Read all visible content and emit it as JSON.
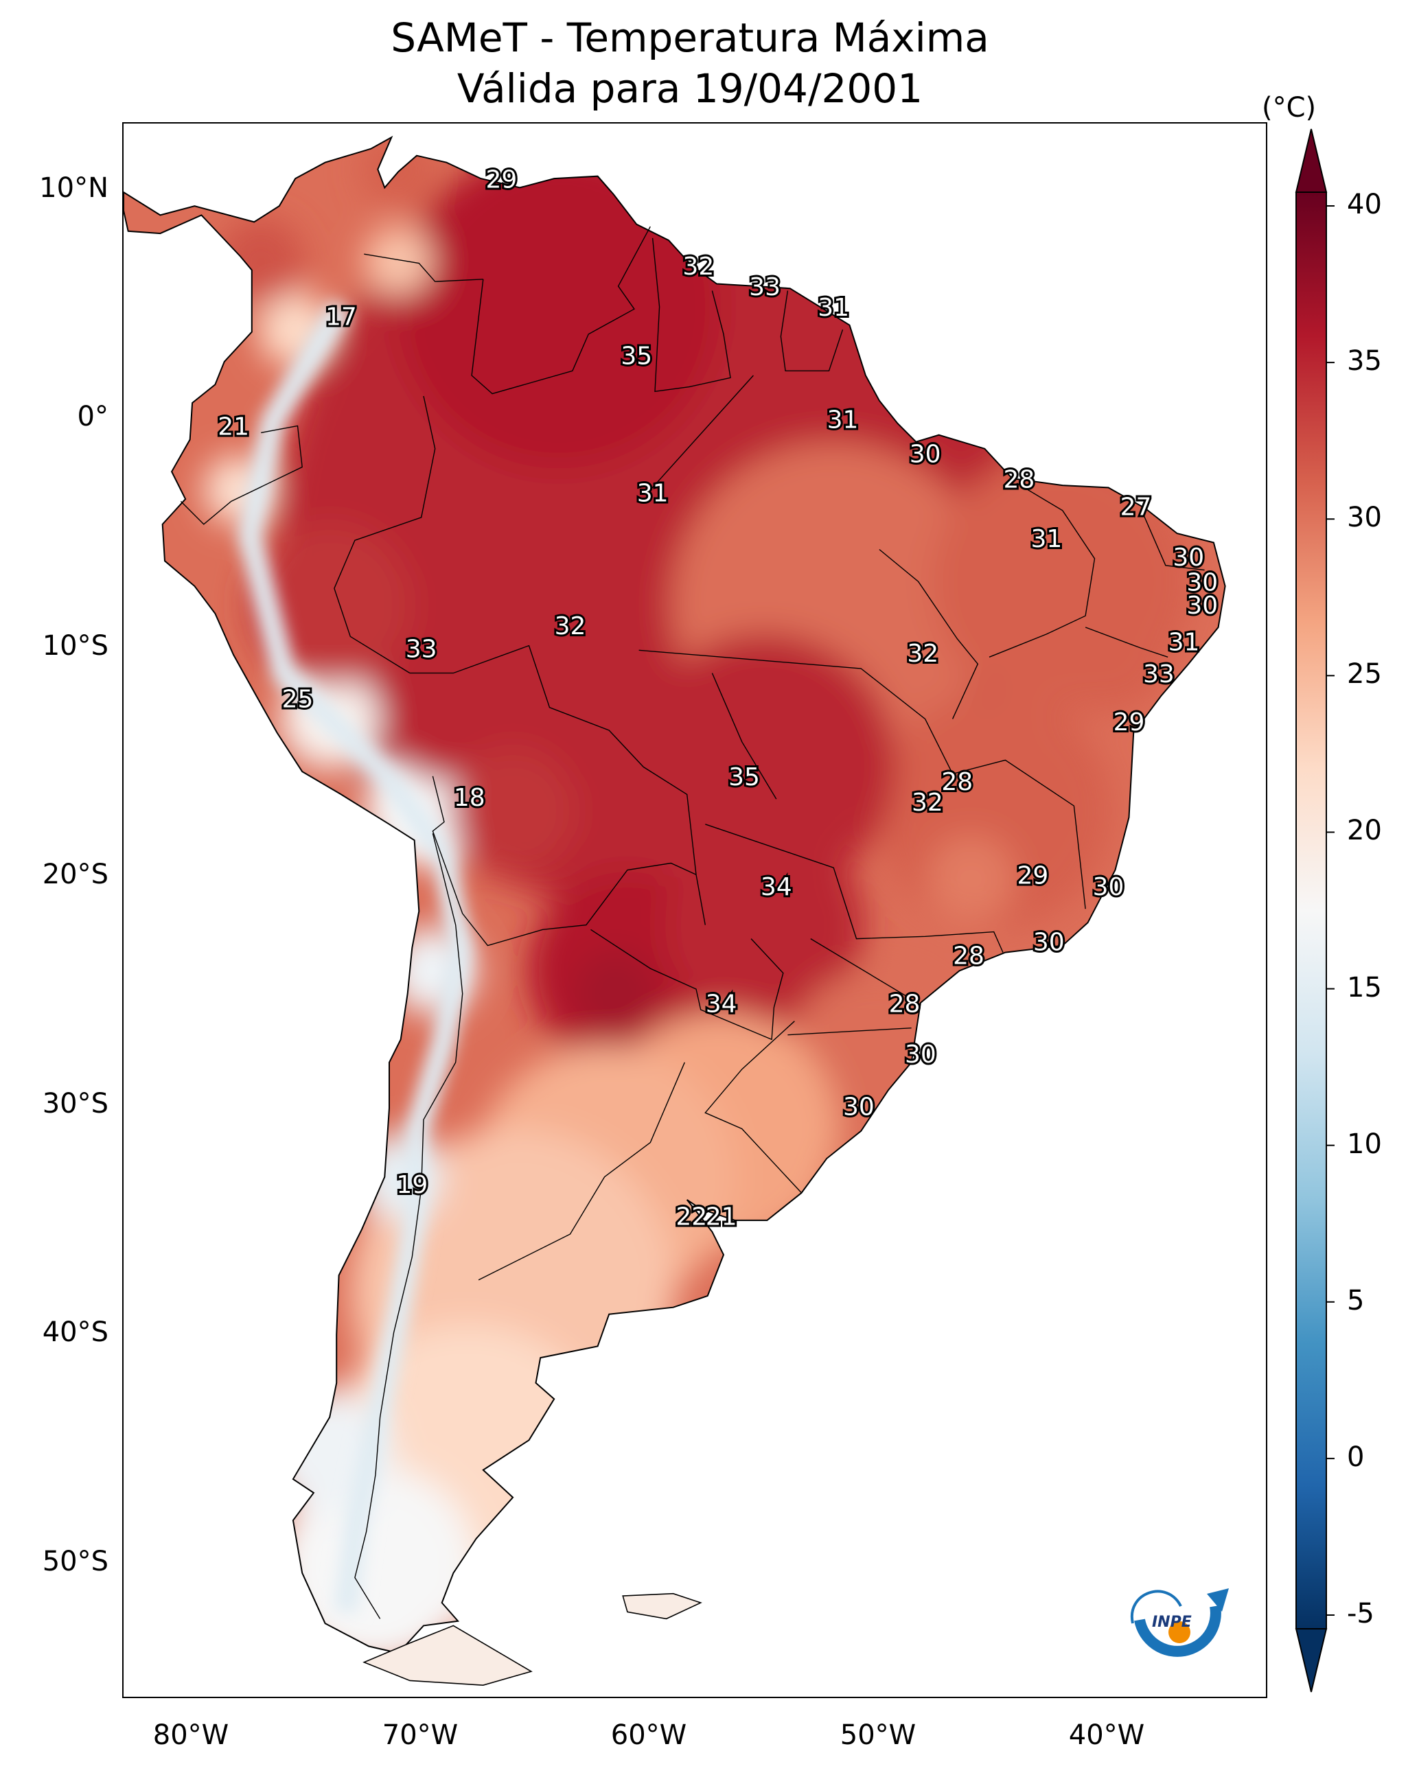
{
  "title": "SAMeT - Temperatura Máxima",
  "subtitle": "Válida para 19/04/2001",
  "unit": "(°C)",
  "lat_labels": [
    "10°N",
    "0°",
    "10°S",
    "20°S",
    "30°S",
    "40°S",
    "50°S"
  ],
  "lon_labels": [
    "80°W",
    "70°W",
    "60°W",
    "50°W",
    "40°W"
  ],
  "colorbar": {
    "ticks": [
      "40",
      "35",
      "30",
      "25",
      "20",
      "15",
      "10",
      "5",
      "0",
      "-5"
    ],
    "min": -5,
    "max": 40,
    "extend": "both",
    "cmap": "RdBu_r",
    "colors": [
      "#67001f",
      "#b2182b",
      "#d6604d",
      "#f4a582",
      "#fddbc7",
      "#f7f7f7",
      "#d1e5f0",
      "#92c5de",
      "#4393c3",
      "#2166ac",
      "#053061"
    ]
  },
  "logo": {
    "text": "INPE",
    "ring_color": "#1a73b8",
    "dot_color": "#f28c00"
  },
  "chart_data": {
    "type": "heatmap",
    "title": "SAMeT - Temperatura Máxima",
    "subtitle": "Válida para 19/04/2001",
    "colorbar_label": "(°C)",
    "xlim": [
      -83,
      -33
    ],
    "ylim": [
      -56,
      13
    ],
    "point_labels": [
      {
        "lon": -66.5,
        "lat": 10.5,
        "value": "29"
      },
      {
        "lon": -57.9,
        "lat": 6.7,
        "value": "32"
      },
      {
        "lon": -55.0,
        "lat": 5.8,
        "value": "33"
      },
      {
        "lon": -52.0,
        "lat": 4.9,
        "value": "31"
      },
      {
        "lon": -73.5,
        "lat": 4.5,
        "value": "17"
      },
      {
        "lon": -60.6,
        "lat": 2.8,
        "value": "35"
      },
      {
        "lon": -78.2,
        "lat": -0.3,
        "value": "21"
      },
      {
        "lon": -51.6,
        "lat": 0.0,
        "value": "31"
      },
      {
        "lon": -48.0,
        "lat": -1.5,
        "value": "30"
      },
      {
        "lon": -43.9,
        "lat": -2.6,
        "value": "28"
      },
      {
        "lon": -59.9,
        "lat": -3.2,
        "value": "31"
      },
      {
        "lon": -38.8,
        "lat": -3.8,
        "value": "27"
      },
      {
        "lon": -42.7,
        "lat": -5.2,
        "value": "31"
      },
      {
        "lon": -36.5,
        "lat": -6.0,
        "value": "30"
      },
      {
        "lon": -35.9,
        "lat": -7.1,
        "value": "30"
      },
      {
        "lon": -35.9,
        "lat": -8.1,
        "value": "30"
      },
      {
        "lon": -36.7,
        "lat": -9.7,
        "value": "31"
      },
      {
        "lon": -63.5,
        "lat": -9.0,
        "value": "32"
      },
      {
        "lon": -70.0,
        "lat": -10.0,
        "value": "33"
      },
      {
        "lon": -48.1,
        "lat": -10.2,
        "value": "32"
      },
      {
        "lon": -37.8,
        "lat": -11.1,
        "value": "33"
      },
      {
        "lon": -75.4,
        "lat": -12.2,
        "value": "25"
      },
      {
        "lon": -39.1,
        "lat": -13.2,
        "value": "29"
      },
      {
        "lon": -55.9,
        "lat": -15.6,
        "value": "35"
      },
      {
        "lon": -46.6,
        "lat": -15.8,
        "value": "28"
      },
      {
        "lon": -47.9,
        "lat": -16.7,
        "value": "32"
      },
      {
        "lon": -67.9,
        "lat": -16.5,
        "value": "18"
      },
      {
        "lon": -43.3,
        "lat": -19.9,
        "value": "29"
      },
      {
        "lon": -40.0,
        "lat": -20.4,
        "value": "30"
      },
      {
        "lon": -54.5,
        "lat": -20.4,
        "value": "34"
      },
      {
        "lon": -42.6,
        "lat": -22.8,
        "value": "30"
      },
      {
        "lon": -46.1,
        "lat": -23.4,
        "value": "28"
      },
      {
        "lon": -56.9,
        "lat": -25.5,
        "value": "34"
      },
      {
        "lon": -48.9,
        "lat": -25.5,
        "value": "28"
      },
      {
        "lon": -48.2,
        "lat": -27.7,
        "value": "30"
      },
      {
        "lon": -50.9,
        "lat": -30.0,
        "value": "30"
      },
      {
        "lon": -70.4,
        "lat": -33.4,
        "value": "19"
      },
      {
        "lon": -58.2,
        "lat": -34.8,
        "value": "22"
      },
      {
        "lon": -56.9,
        "lat": -34.8,
        "value": "21"
      }
    ]
  }
}
